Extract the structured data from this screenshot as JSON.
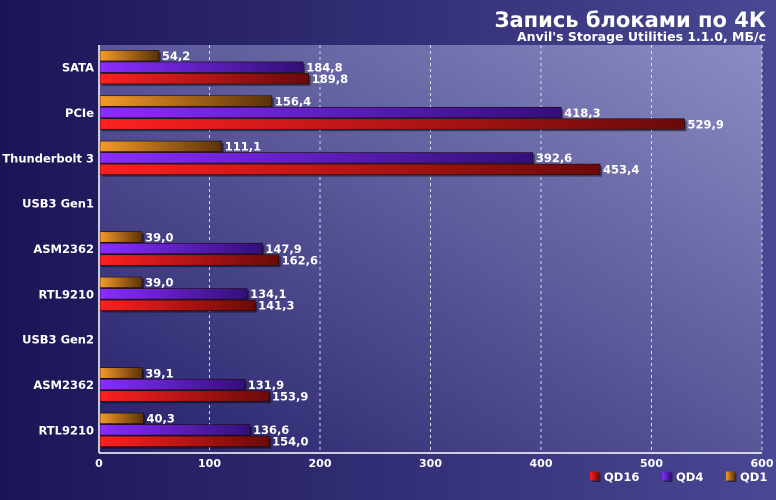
{
  "chart_data": {
    "type": "bar",
    "orientation": "horizontal",
    "title": "Запись блоками по 4К",
    "subtitle": "Anvil's Storage Utilities 1.1.0, МБ/с",
    "categories": [
      "SATA",
      "PCIe",
      "Thunderbolt 3",
      "USB3 Gen1",
      "ASM2362",
      "RTL9210",
      "USB3 Gen2",
      "ASM2362",
      "RTL9210"
    ],
    "series": [
      {
        "name": "QD1",
        "color": "#e8801a",
        "values": [
          54.2,
          156.4,
          111.1,
          null,
          39.0,
          39.0,
          null,
          39.1,
          40.3
        ],
        "labels": [
          "54,2",
          "156,4",
          "111,1",
          "",
          "39,0",
          "39,0",
          "",
          "39,1",
          "40,3"
        ]
      },
      {
        "name": "QD4",
        "color": "#7a1ae8",
        "values": [
          184.8,
          418.3,
          392.6,
          null,
          147.9,
          134.1,
          null,
          131.9,
          136.6
        ],
        "labels": [
          "184,8",
          "418,3",
          "392,6",
          "",
          "147,9",
          "134,1",
          "",
          "131,9",
          "136,6"
        ]
      },
      {
        "name": "QD16",
        "color": "#e81a1a",
        "values": [
          189.8,
          529.9,
          453.4,
          null,
          162.6,
          141.3,
          null,
          153.9,
          154.0
        ],
        "labels": [
          "189,8",
          "529,9",
          "453,4",
          "",
          "162,6",
          "141,3",
          "",
          "153,9",
          "154,0"
        ]
      }
    ],
    "xlim": [
      0,
      600
    ],
    "xticks": [
      0,
      100,
      200,
      300,
      400,
      500,
      600
    ],
    "grid": true,
    "legend": {
      "placement": "bottom-right",
      "order": [
        "QD16",
        "QD4",
        "QD1"
      ]
    }
  }
}
